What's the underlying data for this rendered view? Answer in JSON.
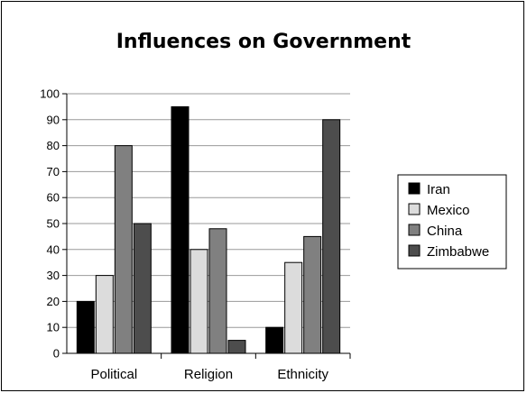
{
  "chart_data": {
    "type": "bar",
    "title": "Influences on Government",
    "xlabel": "",
    "ylabel": "",
    "ylim": [
      0,
      100
    ],
    "yticks": [
      0,
      10,
      20,
      30,
      40,
      50,
      60,
      70,
      80,
      90,
      100
    ],
    "grid": true,
    "legend_position": "right",
    "categories": [
      "Political",
      "Religion",
      "Ethnicity"
    ],
    "series": [
      {
        "name": "Iran",
        "color": "#000000",
        "values": [
          20,
          95,
          10
        ]
      },
      {
        "name": "Mexico",
        "color": "#dcdcdc",
        "values": [
          30,
          40,
          35
        ]
      },
      {
        "name": "China",
        "color": "#808080",
        "values": [
          80,
          48,
          45
        ]
      },
      {
        "name": "Zimbabwe",
        "color": "#4d4d4d",
        "values": [
          50,
          5,
          90
        ]
      }
    ]
  }
}
